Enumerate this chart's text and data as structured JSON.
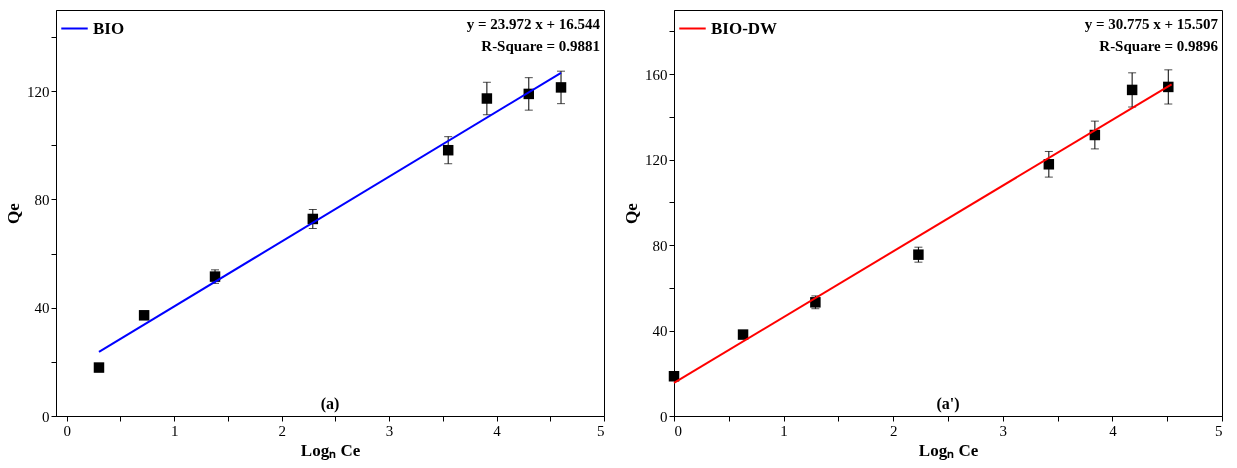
{
  "chart_data": [
    {
      "type": "scatter",
      "xlabel": "Logₙ Ce",
      "ylabel": "Qe",
      "xlim": [
        -0.1,
        5
      ],
      "ylim": [
        0,
        150
      ],
      "xticks": [
        0,
        {
          "value": 0.5,
          "label": null
        },
        1,
        {
          "value": 1.5,
          "label": null
        },
        2,
        {
          "value": 2.5,
          "label": null
        },
        3,
        {
          "value": 3.5,
          "label": null
        },
        4,
        {
          "value": 4.5,
          "label": null
        },
        5
      ],
      "yticks": [
        0,
        {
          "value": 20,
          "label": null
        },
        40,
        {
          "value": 60,
          "label": null
        },
        80,
        {
          "value": 100,
          "label": null
        },
        120,
        {
          "value": 140,
          "label": null
        }
      ],
      "grid": false,
      "legend": "top left",
      "annotations": [
        "y = 23.972 x + 16.544",
        "R-Square = 0.9881",
        "(a)"
      ],
      "series": [
        {
          "color": "#000000",
          "marker": "square",
          "x": [
            0.3,
            0.72,
            1.38,
            2.29,
            3.55,
            3.91,
            4.3,
            4.6
          ],
          "values": [
            17.9,
            37.2,
            51.5,
            72.8,
            98.2,
            117.3,
            119,
            121.4
          ],
          "errors": [
            1.5,
            1.5,
            2.5,
            3.5,
            5,
            6,
            6,
            6
          ]
        },
        {
          "type": "line",
          "name": "BIO",
          "color": "#0000ff",
          "marker": "none",
          "x": [
            0.3,
            4.6
          ],
          "values": [
            23.7,
            126.8
          ]
        }
      ]
    },
    {
      "type": "scatter",
      "xlabel": "Logₙ Ce",
      "ylabel": "Qe",
      "xlim": [
        0,
        5
      ],
      "ylim": [
        0,
        190
      ],
      "xticks": [
        0,
        {
          "value": 0.5,
          "label": null
        },
        1,
        {
          "value": 1.5,
          "label": null
        },
        2,
        {
          "value": 2.5,
          "label": null
        },
        3,
        {
          "value": 3.5,
          "label": null
        },
        4,
        {
          "value": 4.5,
          "label": null
        },
        5
      ],
      "yticks": [
        0,
        {
          "value": 20,
          "label": null
        },
        40,
        {
          "value": 60,
          "label": null
        },
        80,
        {
          "value": 100,
          "label": null
        },
        120,
        {
          "value": 140,
          "label": null
        },
        160,
        {
          "value": 180,
          "label": null
        }
      ],
      "grid": false,
      "legend": "top left",
      "annotations": [
        "y = 30.775 x + 15.507",
        "R-Square = 0.9896",
        "(a')"
      ],
      "series": [
        {
          "color": "#000000",
          "marker": "square",
          "x": [
            0,
            0.63,
            1.29,
            2.23,
            3.42,
            3.84,
            4.18,
            4.51
          ],
          "values": [
            18.6,
            38.1,
            53.2,
            75.5,
            117.8,
            131.5,
            152.6,
            154
          ],
          "errors": [
            1.5,
            1.5,
            3,
            3.5,
            6,
            6.5,
            8,
            8
          ]
        },
        {
          "type": "line",
          "name": "BIO-DW",
          "color": "#ff0000",
          "marker": "none",
          "x": [
            0,
            4.54
          ],
          "values": [
            15.5,
            155.2
          ]
        }
      ]
    }
  ]
}
